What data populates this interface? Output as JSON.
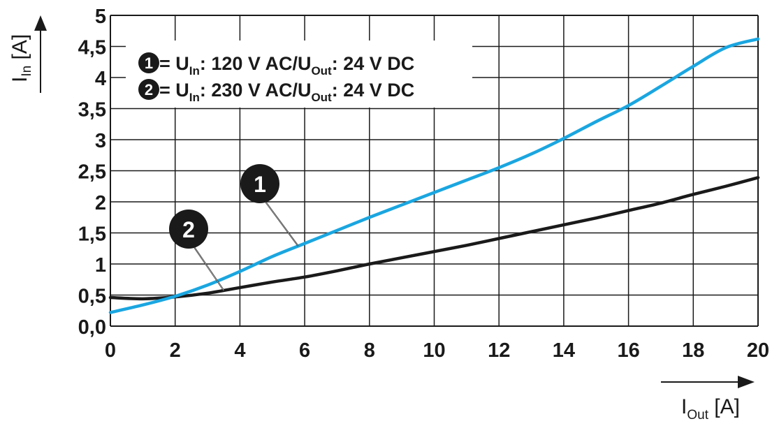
{
  "chart_data": {
    "type": "line",
    "x": [
      0,
      1,
      2,
      3,
      4,
      5,
      6,
      7,
      8,
      9,
      10,
      11,
      12,
      13,
      14,
      15,
      16,
      17,
      18,
      19,
      20
    ],
    "series": [
      {
        "id": "1",
        "values": [
          0.22,
          0.34,
          0.48,
          0.66,
          0.88,
          1.12,
          1.33,
          1.54,
          1.75,
          1.95,
          2.15,
          2.35,
          2.55,
          2.77,
          3.02,
          3.29,
          3.55,
          3.86,
          4.18,
          4.48,
          4.62
        ],
        "color": "#1aa6e0"
      },
      {
        "id": "2",
        "values": [
          0.46,
          0.44,
          0.47,
          0.53,
          0.62,
          0.71,
          0.79,
          0.89,
          1.0,
          1.1,
          1.2,
          1.3,
          1.41,
          1.52,
          1.63,
          1.74,
          1.86,
          1.98,
          2.12,
          2.25,
          2.39
        ],
        "color": "#1a1a1a"
      }
    ],
    "xlim": [
      0,
      20
    ],
    "ylim": [
      0,
      5
    ],
    "xticks": [
      "0",
      "2",
      "4",
      "6",
      "8",
      "10",
      "12",
      "14",
      "16",
      "18",
      "20"
    ],
    "yticks": [
      "0,0",
      "0,5",
      "1",
      "1,5",
      "2",
      "2,5",
      "3",
      "3,5",
      "4",
      "4,5",
      "5"
    ],
    "xlabel": {
      "main": "I",
      "sub": "Out",
      "unit": " [A]"
    },
    "ylabel": {
      "main": "I",
      "sub": "In",
      "unit": " [A]"
    },
    "grid": true,
    "legend": {
      "position": "top-left",
      "entries": [
        {
          "badge": "1",
          "prefix": "= U",
          "sub1": "In",
          "mid": ": 120 V AC/U",
          "sub2": "Out",
          "suffix": ": 24 V DC"
        },
        {
          "badge": "2",
          "prefix": "= U",
          "sub1": "In",
          "mid": ": 230 V AC/U",
          "sub2": "Out",
          "suffix": ": 24 V DC"
        }
      ]
    },
    "annotations": [
      {
        "label": "1",
        "target_series": "1",
        "target_x": 5.8
      },
      {
        "label": "2",
        "target_series": "2",
        "target_x": 3.5
      }
    ]
  }
}
